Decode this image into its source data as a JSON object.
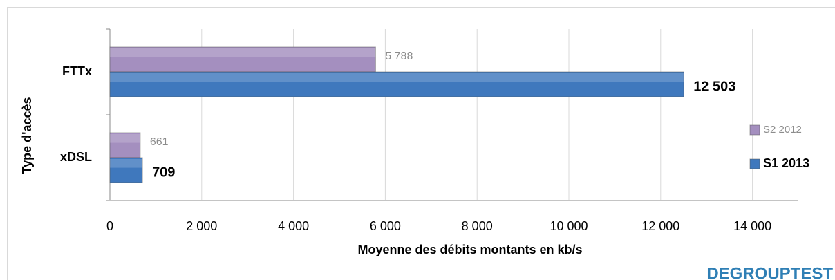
{
  "chart_data": {
    "type": "bar",
    "orientation": "horizontal",
    "xlabel": "Moyenne des débits montants en kb/s",
    "ylabel": "Type d'accès",
    "categories": [
      "FTTx",
      "xDSL"
    ],
    "series": [
      {
        "name": "S2 2012",
        "color": "#a48fbf",
        "values": [
          5788,
          661
        ],
        "value_labels": [
          "5 788",
          "661"
        ]
      },
      {
        "name": "S1 2013",
        "color": "#3f78bd",
        "values": [
          12503,
          709
        ],
        "value_labels": [
          "12 503",
          "709"
        ]
      }
    ],
    "xlim": [
      0,
      15000
    ],
    "xticks": [
      0,
      {
        "value": 2000,
        "label": "2 000"
      },
      {
        "value": 4000,
        "label": "4 000"
      },
      {
        "value": 6000,
        "label": "6 000"
      },
      {
        "value": 8000,
        "label": "8 000"
      },
      {
        "value": 10000,
        "label": "10 000"
      },
      {
        "value": 12000,
        "label": "12 000"
      },
      {
        "value": 14000,
        "label": "14 000"
      }
    ],
    "grid": true,
    "legend": "right",
    "logo": "DEGROUPTEST"
  }
}
